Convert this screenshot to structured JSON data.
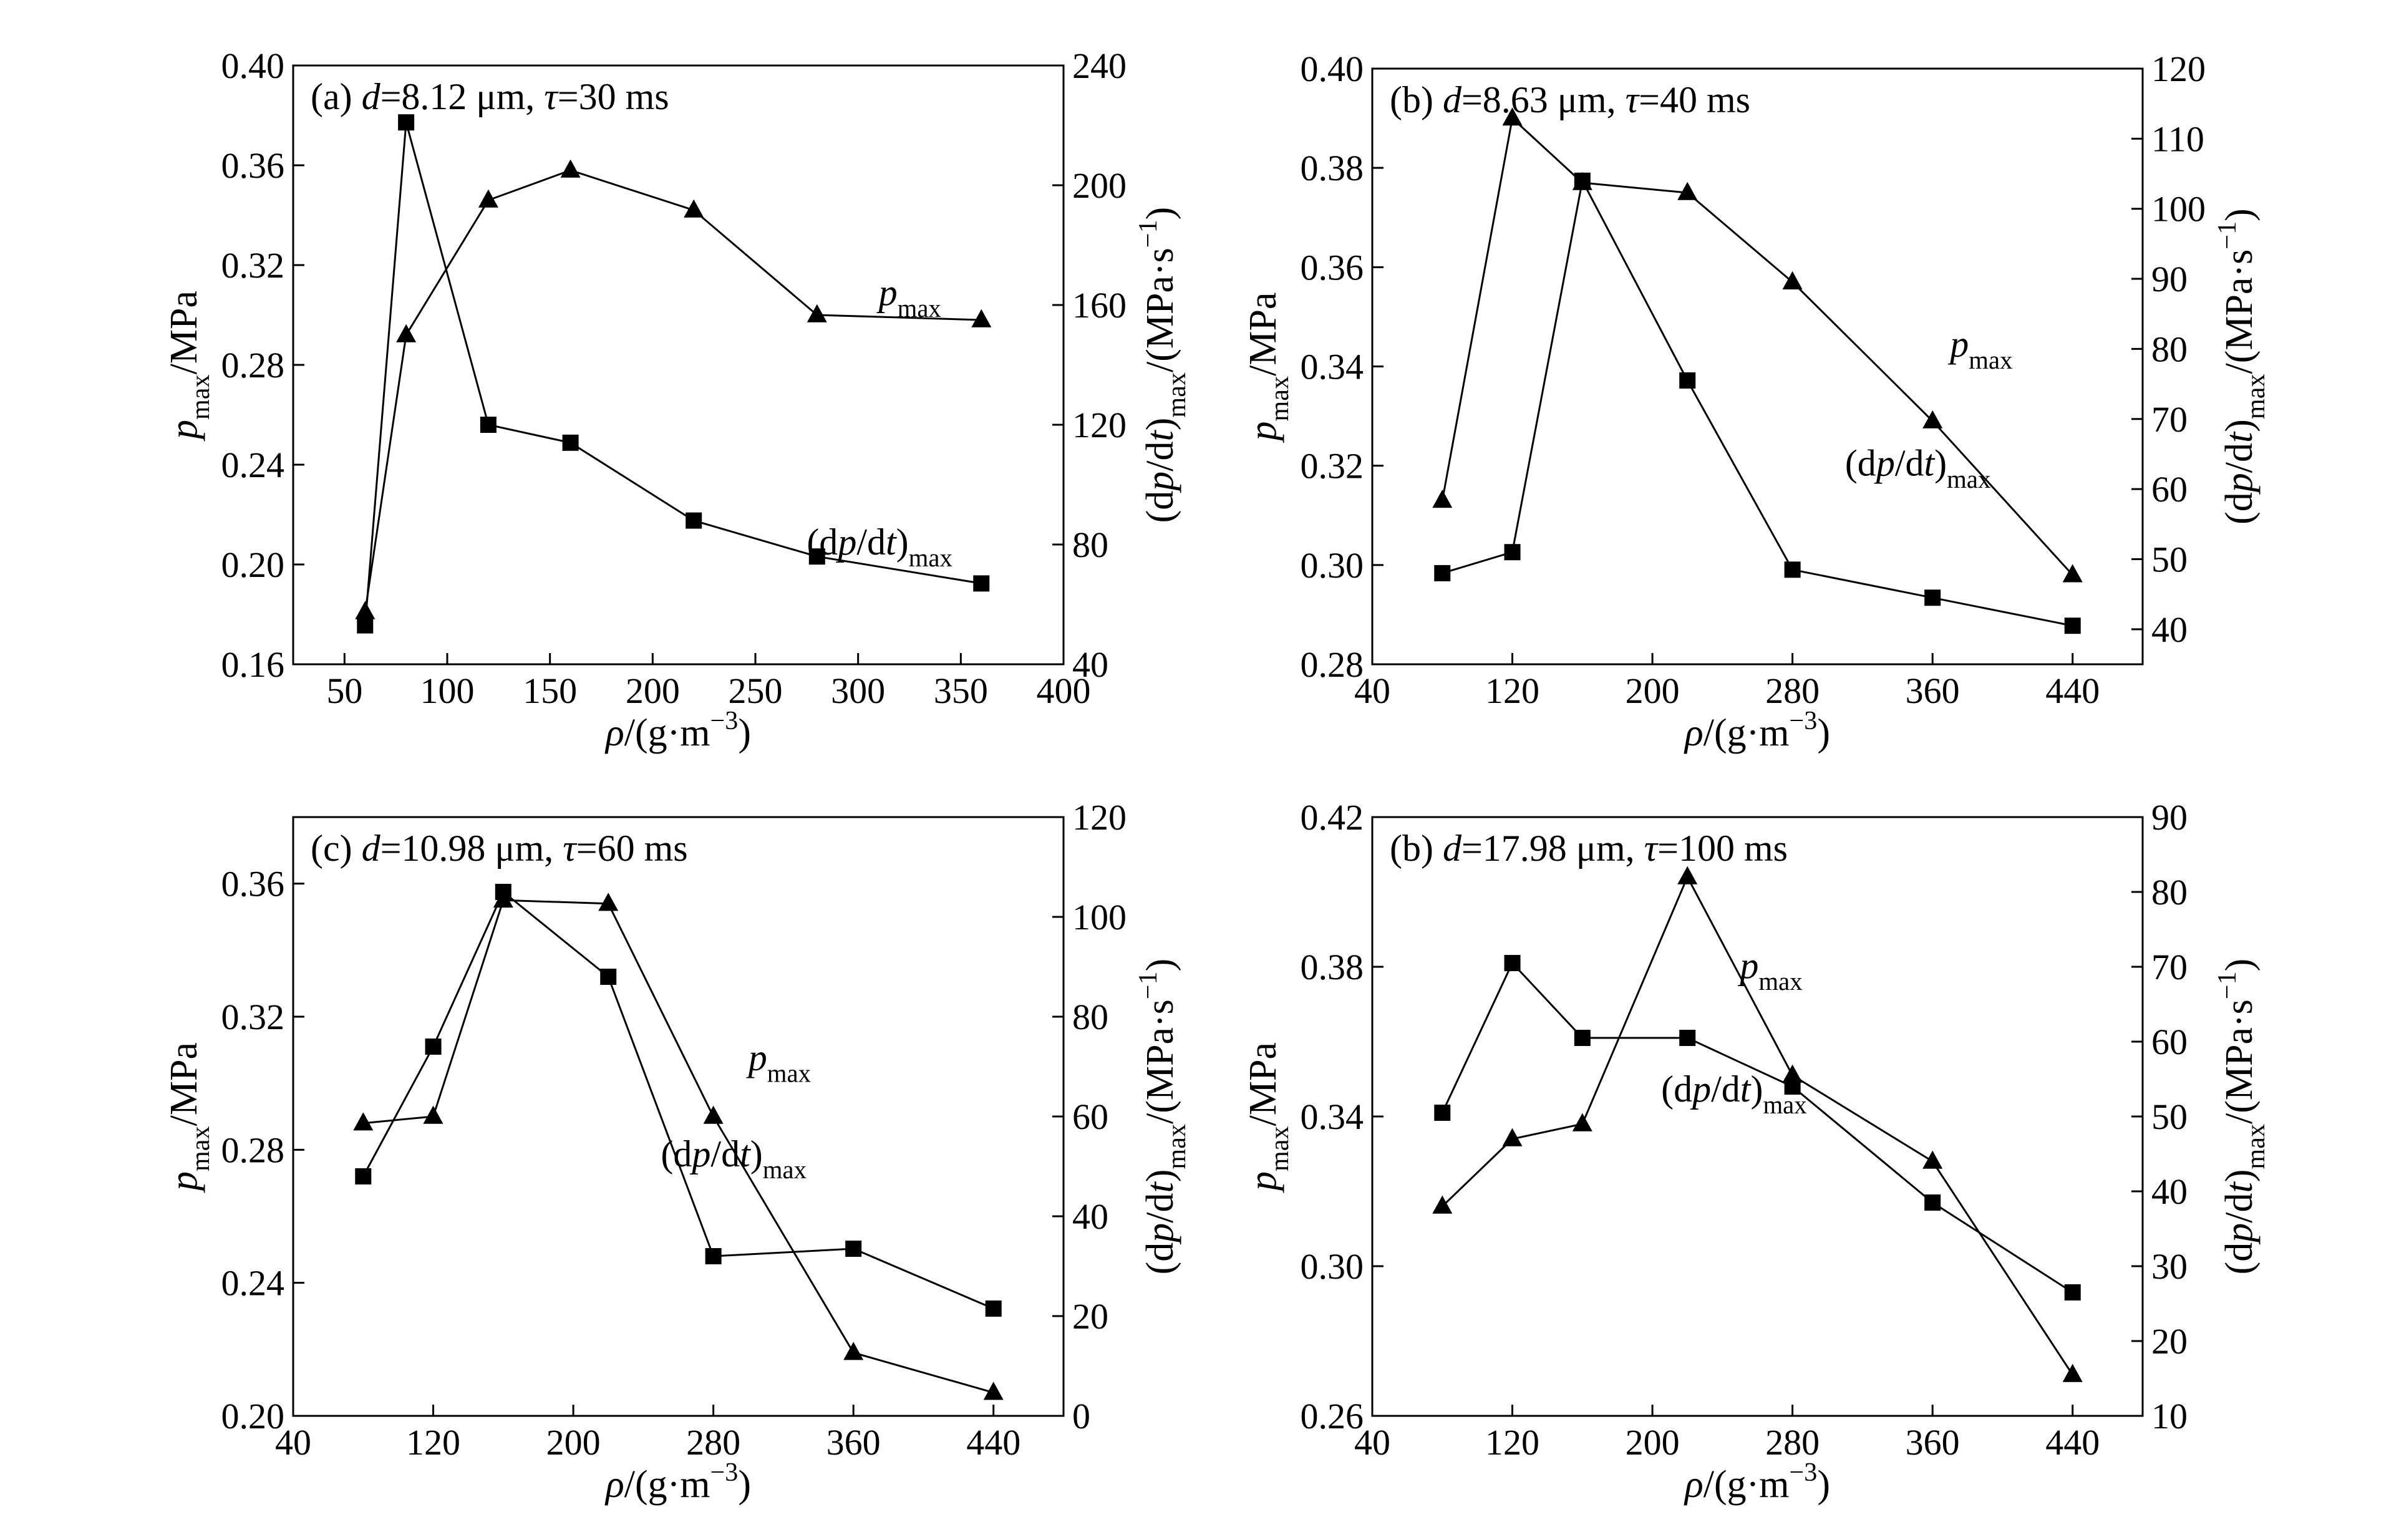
{
  "figure": {
    "x_axis_label": "ρ/(g·m⁻³)",
    "left_axis_label": "p_max/MPa",
    "right_axis_label": "(dp/dt)_max/(MPa·s⁻¹)"
  },
  "chart_data": [
    {
      "type": "line",
      "panel_label": "(a) d=8.12 μm, τ=30 ms",
      "xlabel": "ρ/(g·m⁻³)",
      "ylabel_left": "p_max/MPa",
      "ylabel_right": "(dp/dt)_max/(MPa·s⁻¹)",
      "xlim": [
        25,
        400
      ],
      "x_ticks": [
        50,
        100,
        150,
        200,
        250,
        300,
        350,
        400
      ],
      "ylim_left": [
        0.16,
        0.4
      ],
      "y_ticks_left": [
        "0.16",
        "0.20",
        "0.24",
        "0.28",
        "0.32",
        "0.36",
        "0.40"
      ],
      "ylim_right": [
        40,
        240
      ],
      "y_ticks_right": [
        "40",
        "80",
        "120",
        "160",
        "200",
        "240"
      ],
      "grid": false,
      "series": [
        {
          "name": "p_max",
          "axis": "left",
          "marker": "triangle",
          "x": [
            60,
            80,
            120,
            160,
            220,
            280,
            360
          ],
          "values": [
            0.181,
            0.292,
            0.346,
            0.358,
            0.342,
            0.3,
            0.298
          ]
        },
        {
          "name": "(dp/dt)_max",
          "axis": "right",
          "marker": "square",
          "x": [
            60,
            80,
            120,
            160,
            220,
            280,
            360
          ],
          "values": [
            53,
            221,
            120,
            114,
            88,
            76,
            67
          ]
        }
      ],
      "annotations": [
        {
          "series": "p_max",
          "x": 310,
          "y": 0.304,
          "axis": "left"
        },
        {
          "series": "(dp/dt)_max",
          "x": 275,
          "y": 0.204,
          "axis": "left"
        }
      ]
    },
    {
      "type": "line",
      "panel_label": "(b) d=8.63 μm, τ=40 ms",
      "xlabel": "ρ/(g·m⁻³)",
      "ylabel_left": "p_max/MPa",
      "ylabel_right": "(dp/dt)_max/(MPa·s⁻¹)",
      "xlim": [
        40,
        480
      ],
      "x_ticks": [
        40,
        120,
        200,
        280,
        360,
        440
      ],
      "ylim_left": [
        0.28,
        0.4
      ],
      "y_ticks_left": [
        "0.28",
        "0.30",
        "0.32",
        "0.34",
        "0.36",
        "0.38",
        "0.40"
      ],
      "ylim_right": [
        35,
        120
      ],
      "y_ticks_right": [
        "40",
        "50",
        "60",
        "70",
        "80",
        "90",
        "100",
        "110",
        "120"
      ],
      "grid": false,
      "series": [
        {
          "name": "p_max",
          "axis": "left",
          "marker": "triangle",
          "x": [
            80,
            120,
            160,
            220,
            280,
            360,
            440
          ],
          "values": [
            0.313,
            0.39,
            0.377,
            0.375,
            0.357,
            0.329,
            0.298
          ]
        },
        {
          "name": "(dp/dt)_max",
          "axis": "right",
          "marker": "square",
          "x": [
            80,
            120,
            160,
            220,
            280,
            360,
            440
          ],
          "values": [
            48,
            51,
            104,
            75.5,
            48.5,
            44.5,
            40.5
          ]
        }
      ],
      "annotations": [
        {
          "series": "p_max",
          "x": 370,
          "y": 0.342,
          "axis": "left"
        },
        {
          "series": "(dp/dt)_max",
          "x": 310,
          "y": 0.318,
          "axis": "left"
        }
      ]
    },
    {
      "type": "line",
      "panel_label": "(c) d=10.98 μm, τ=60 ms",
      "xlabel": "ρ/(g·m⁻³)",
      "ylabel_left": "p_max/MPa",
      "ylabel_right": "(dp/dt)_max/(MPa·s⁻¹)",
      "xlim": [
        40,
        480
      ],
      "x_ticks": [
        40,
        120,
        200,
        280,
        360,
        440
      ],
      "ylim_left": [
        0.2,
        0.38
      ],
      "y_ticks_left": [
        "0.20",
        "0.24",
        "0.28",
        "0.32",
        "0.36"
      ],
      "ylim_right": [
        0,
        120
      ],
      "y_ticks_right": [
        "0",
        "20",
        "40",
        "60",
        "80",
        "100",
        "120"
      ],
      "grid": false,
      "series": [
        {
          "name": "p_max",
          "axis": "left",
          "marker": "triangle",
          "x": [
            80,
            120,
            160,
            220,
            280,
            360,
            440
          ],
          "values": [
            0.288,
            0.29,
            0.355,
            0.354,
            0.29,
            0.219,
            0.207
          ]
        },
        {
          "name": "(dp/dt)_max",
          "axis": "right",
          "marker": "square",
          "x": [
            80,
            120,
            160,
            220,
            280,
            360,
            440
          ],
          "values": [
            48,
            74,
            105,
            88,
            32,
            33.5,
            21.5
          ]
        }
      ],
      "annotations": [
        {
          "series": "p_max",
          "x": 300,
          "y": 0.304,
          "axis": "left"
        },
        {
          "series": "(dp/dt)_max",
          "x": 250,
          "y": 0.275,
          "axis": "left"
        }
      ]
    },
    {
      "type": "line",
      "panel_label": "(b) d=17.98 μm, τ=100 ms",
      "xlabel": "ρ/(g·m⁻³)",
      "ylabel_left": "p_max/MPa",
      "ylabel_right": "(dp/dt)_max/(MPa·s⁻¹)",
      "xlim": [
        40,
        480
      ],
      "x_ticks": [
        40,
        120,
        200,
        280,
        360,
        440
      ],
      "ylim_left": [
        0.26,
        0.42
      ],
      "y_ticks_left": [
        "0.26",
        "0.30",
        "0.34",
        "0.38",
        "0.42"
      ],
      "ylim_right": [
        10,
        90
      ],
      "y_ticks_right": [
        "10",
        "20",
        "30",
        "40",
        "50",
        "60",
        "70",
        "80",
        "90"
      ],
      "grid": false,
      "series": [
        {
          "name": "p_max",
          "axis": "left",
          "marker": "triangle",
          "x": [
            80,
            120,
            160,
            220,
            280,
            360,
            440
          ],
          "values": [
            0.316,
            0.334,
            0.338,
            0.404,
            0.351,
            0.328,
            0.271
          ]
        },
        {
          "name": "(dp/dt)_max",
          "axis": "right",
          "marker": "square",
          "x": [
            80,
            120,
            160,
            220,
            280,
            360,
            440
          ],
          "values": [
            50.5,
            70.5,
            60.5,
            60.5,
            54,
            38.5,
            26.5
          ]
        }
      ],
      "annotations": [
        {
          "series": "p_max",
          "x": 250,
          "y": 0.377,
          "axis": "left"
        },
        {
          "series": "(dp/dt)_max",
          "x": 205,
          "y": 0.344,
          "axis": "left"
        }
      ]
    }
  ]
}
